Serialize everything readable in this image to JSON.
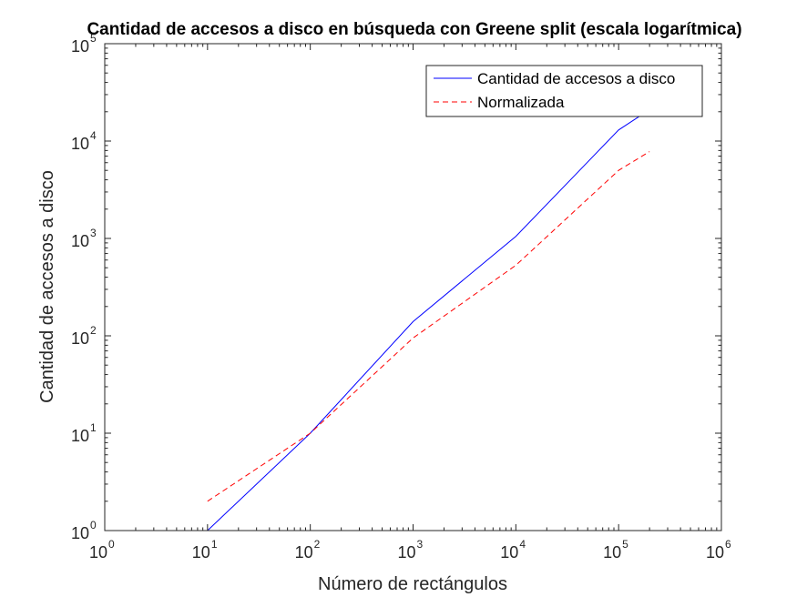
{
  "chart_data": {
    "type": "line",
    "title": "Cantidad de accesos a disco en búsqueda con Greene split (escala logarítmica)",
    "xlabel": "Número de rectángulos",
    "ylabel": "Cantidad de accesos a disco",
    "xscale": "log",
    "yscale": "log",
    "xlim": [
      1,
      1000000
    ],
    "ylim": [
      1,
      100000
    ],
    "x_ticks": [
      {
        "base": "10",
        "exp": "0"
      },
      {
        "base": "10",
        "exp": "1"
      },
      {
        "base": "10",
        "exp": "2"
      },
      {
        "base": "10",
        "exp": "3"
      },
      {
        "base": "10",
        "exp": "4"
      },
      {
        "base": "10",
        "exp": "5"
      },
      {
        "base": "10",
        "exp": "6"
      }
    ],
    "y_ticks": [
      {
        "base": "10",
        "exp": "0"
      },
      {
        "base": "10",
        "exp": "1"
      },
      {
        "base": "10",
        "exp": "2"
      },
      {
        "base": "10",
        "exp": "3"
      },
      {
        "base": "10",
        "exp": "4"
      },
      {
        "base": "10",
        "exp": "5"
      }
    ],
    "grid": false,
    "legend_position": "top-right",
    "series": [
      {
        "name": "Cantidad de accesos a disco",
        "color": "#0000ff",
        "style": "solid",
        "points": [
          [
            1,
            1
          ],
          [
            10,
            1
          ],
          [
            100,
            10
          ],
          [
            1000,
            140
          ],
          [
            10000,
            1050
          ],
          [
            100000,
            13000
          ],
          [
            200000,
            21000
          ]
        ]
      },
      {
        "name": "Normalizada",
        "color": "#ff0000",
        "style": "dashed",
        "points": [
          [
            10,
            2
          ],
          [
            100,
            10
          ],
          [
            1000,
            95
          ],
          [
            10000,
            530
          ],
          [
            100000,
            5000
          ],
          [
            200000,
            7800
          ]
        ]
      }
    ]
  }
}
